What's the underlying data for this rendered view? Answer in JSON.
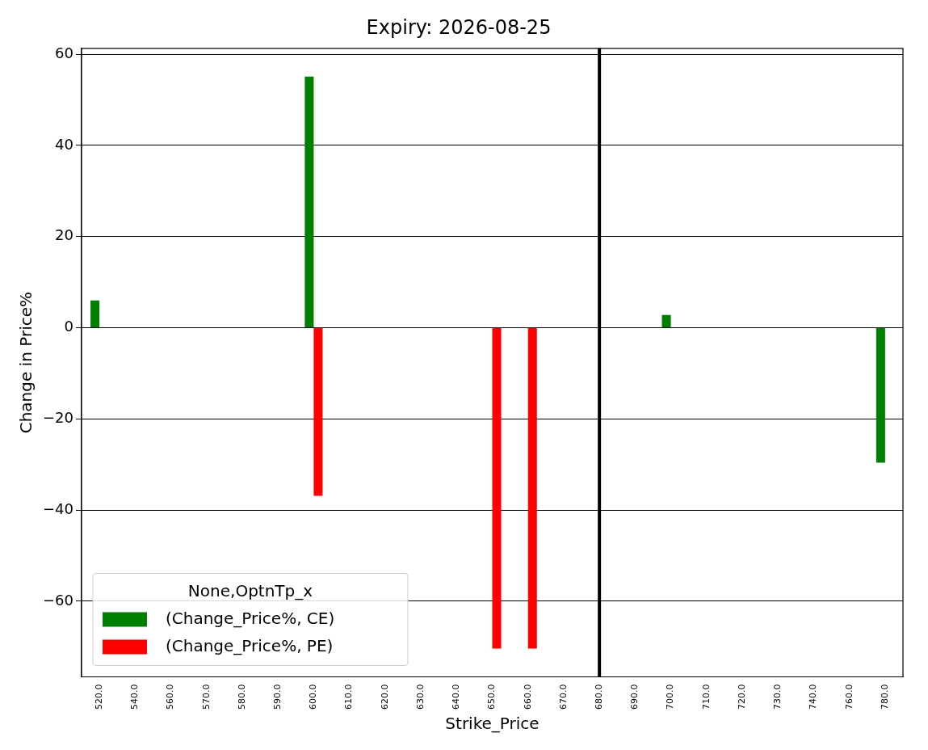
{
  "chart_data": {
    "type": "bar",
    "title": "Expiry: 2026-08-25",
    "xlabel": "Strike_Price",
    "ylabel": "Change in Price%",
    "legend_title": "None,OptnTp_x",
    "categories": [
      "520.0",
      "540.0",
      "560.0",
      "570.0",
      "580.0",
      "590.0",
      "600.0",
      "610.0",
      "620.0",
      "630.0",
      "640.0",
      "650.0",
      "660.0",
      "670.0",
      "680.0",
      "690.0",
      "700.0",
      "710.0",
      "720.0",
      "730.0",
      "740.0",
      "760.0",
      "780.0"
    ],
    "series": [
      {
        "name": "(Change_Price%, CE)",
        "color": "#008000",
        "values": [
          6.0,
          null,
          null,
          null,
          null,
          null,
          55.1,
          null,
          null,
          null,
          null,
          null,
          null,
          null,
          null,
          null,
          2.8,
          null,
          null,
          null,
          null,
          null,
          -29.6
        ]
      },
      {
        "name": "(Change_Price%, PE)",
        "color": "#ff0000",
        "values": [
          null,
          null,
          null,
          null,
          null,
          null,
          -36.9,
          null,
          null,
          null,
          null,
          -70.4,
          -70.4,
          null,
          null,
          null,
          null,
          null,
          null,
          null,
          null,
          null,
          null
        ]
      }
    ],
    "ylim": [
      -76.6,
      61.3
    ],
    "yticks": [
      {
        "value": -60,
        "label": "−60"
      },
      {
        "value": -40,
        "label": "−40"
      },
      {
        "value": -20,
        "label": "−20"
      },
      0,
      20,
      40,
      60
    ],
    "ref_lines": [
      {
        "axis": "x",
        "value": "680.0",
        "color": "#000000"
      }
    ],
    "grid": "y",
    "legend": "bottom left"
  }
}
